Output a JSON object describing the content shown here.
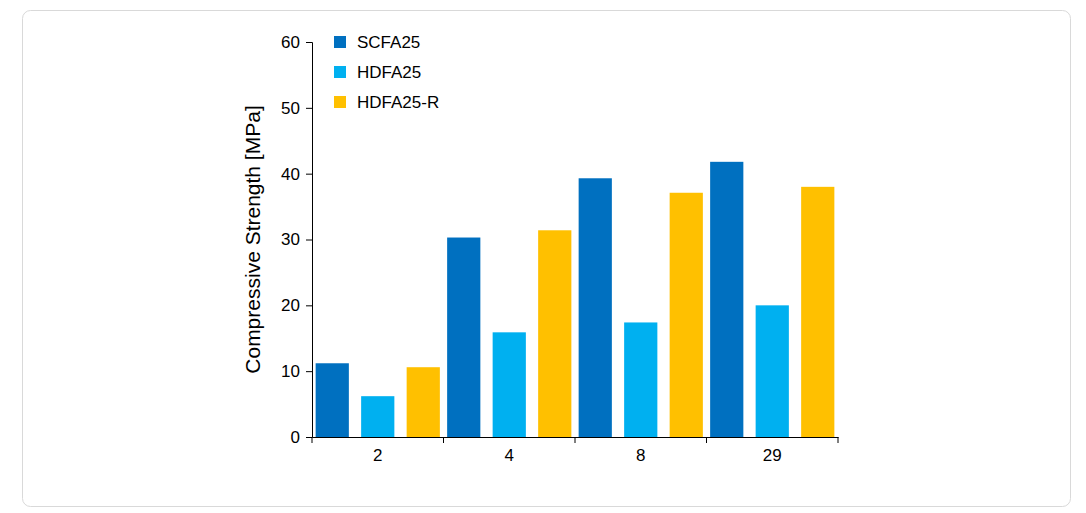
{
  "chart_data": {
    "type": "bar",
    "y_label": "Compressive Strength [MPa]",
    "categories": [
      "2",
      "4",
      "8",
      "29"
    ],
    "series": [
      {
        "name": "SCFA25",
        "color": "#0070c0",
        "values": [
          11.2,
          30.3,
          39.3,
          41.8
        ]
      },
      {
        "name": "HDFA25",
        "color": "#00b0f0",
        "values": [
          6.2,
          15.9,
          17.4,
          20.0
        ]
      },
      {
        "name": "HDFA25-R",
        "color": "#ffc000",
        "values": [
          10.6,
          31.4,
          37.1,
          38.0
        ]
      }
    ],
    "ylim": [
      0,
      60
    ],
    "yticks": [
      0,
      10,
      20,
      30,
      40,
      50,
      60
    ],
    "grid": false,
    "legend": "upper left"
  }
}
